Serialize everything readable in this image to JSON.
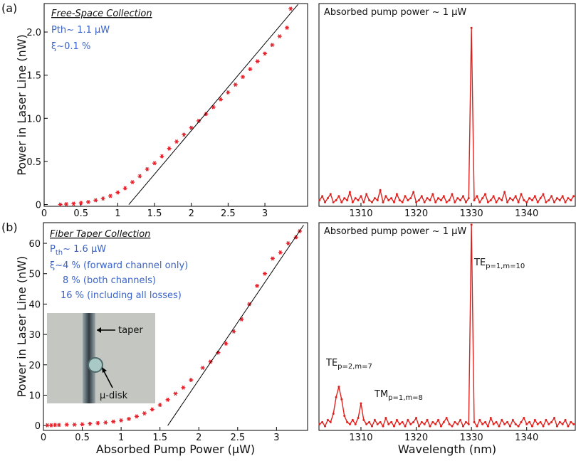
{
  "chart_data": [
    {
      "type": "scatter",
      "label": "(a)",
      "ylabel": "Power in Laser Line (nW)",
      "xlim": [
        0,
        3.58
      ],
      "ylim": [
        -0.02,
        2.33
      ],
      "xticks": [
        0,
        0.5,
        1,
        1.5,
        2,
        2.5,
        3
      ],
      "yticks": [
        0,
        0.5,
        {
          "value": 1,
          "label": "1.0"
        },
        1.5,
        {
          "value": 2,
          "label": "2.0"
        }
      ],
      "series": [
        {
          "marker": "star",
          "color": "#e8202a",
          "x": [
            0.22,
            0.3,
            0.4,
            0.5,
            0.6,
            0.7,
            0.8,
            0.9,
            1.0,
            1.1,
            1.2,
            1.3,
            1.4,
            1.5,
            1.6,
            1.7,
            1.8,
            1.9,
            2.0,
            2.1,
            2.2,
            2.3,
            2.4,
            2.5,
            2.6,
            2.7,
            2.8,
            2.9,
            3.0,
            3.1,
            3.2,
            3.3,
            3.35
          ],
          "values": [
            0.0,
            0.005,
            0.01,
            0.02,
            0.03,
            0.05,
            0.07,
            0.1,
            0.14,
            0.19,
            0.26,
            0.33,
            0.41,
            0.48,
            0.56,
            0.65,
            0.73,
            0.81,
            0.89,
            0.97,
            1.05,
            1.13,
            1.22,
            1.3,
            1.39,
            1.48,
            1.57,
            1.66,
            1.75,
            1.85,
            1.95,
            2.05,
            2.27
          ]
        },
        {
          "marker": "none",
          "color": "#000000",
          "x": [
            1.15,
            3.45
          ],
          "values": [
            0,
            2.32
          ]
        }
      ],
      "annotations": [
        {
          "text": "Free-Space Collection"
        },
        {
          "text": "Pth~ 1.1 µW"
        },
        {
          "text": "ξ~0.1 %"
        }
      ]
    },
    {
      "type": "line",
      "title": "Absorbed pump power ~ 1 µW",
      "xlim": [
        1302.4,
        1348.8
      ],
      "ylim": [
        0,
        1
      ],
      "xticks": [
        1310,
        1320,
        1330,
        1340
      ],
      "x": [
        1302.5,
        1303,
        1303.5,
        1304,
        1304.5,
        1305,
        1305.5,
        1306,
        1306.5,
        1307,
        1307.5,
        1308,
        1308.5,
        1309,
        1309.5,
        1310,
        1310.5,
        1311,
        1311.5,
        1312,
        1312.5,
        1313,
        1313.5,
        1314,
        1314.5,
        1315,
        1315.5,
        1316,
        1316.5,
        1317,
        1317.5,
        1318,
        1318.5,
        1319,
        1319.5,
        1320,
        1320.5,
        1321,
        1321.5,
        1322,
        1322.5,
        1323,
        1323.5,
        1324,
        1324.5,
        1325,
        1325.5,
        1326,
        1326.5,
        1327,
        1327.5,
        1328,
        1328.5,
        1329,
        1329.5,
        1330,
        1330.5,
        1331,
        1331.5,
        1332,
        1332.5,
        1333,
        1333.5,
        1334,
        1334.5,
        1335,
        1335.5,
        1336,
        1336.5,
        1337,
        1337.5,
        1338,
        1338.5,
        1339,
        1339.5,
        1340,
        1340.5,
        1341,
        1341.5,
        1342,
        1342.5,
        1343,
        1343.5,
        1344,
        1344.5,
        1345,
        1345.5,
        1346,
        1346.5,
        1347,
        1347.5,
        1348,
        1348.5
      ],
      "series": [
        {
          "color": "#e0201c",
          "values": [
            0.03,
            0.05,
            0.02,
            0.04,
            0.06,
            0.02,
            0.03,
            0.05,
            0.02,
            0.04,
            0.03,
            0.07,
            0.02,
            0.04,
            0.03,
            0.05,
            0.02,
            0.06,
            0.03,
            0.02,
            0.04,
            0.03,
            0.08,
            0.02,
            0.05,
            0.03,
            0.04,
            0.02,
            0.06,
            0.03,
            0.02,
            0.05,
            0.03,
            0.04,
            0.07,
            0.02,
            0.03,
            0.05,
            0.02,
            0.04,
            0.03,
            0.06,
            0.02,
            0.04,
            0.03,
            0.05,
            0.02,
            0.03,
            0.06,
            0.02,
            0.04,
            0.03,
            0.05,
            0.02,
            0.04,
            0.88,
            0.03,
            0.05,
            0.02,
            0.04,
            0.06,
            0.02,
            0.03,
            0.05,
            0.02,
            0.04,
            0.03,
            0.07,
            0.02,
            0.04,
            0.03,
            0.05,
            0.02,
            0.06,
            0.03,
            0.02,
            0.04,
            0.03,
            0.05,
            0.02,
            0.04,
            0.06,
            0.02,
            0.03,
            0.05,
            0.02,
            0.04,
            0.03,
            0.05,
            0.02,
            0.04,
            0.03,
            0.05
          ]
        }
      ],
      "annotations": []
    },
    {
      "type": "scatter",
      "label": "(b)",
      "ylabel": "Power in Laser Line (nW)",
      "xlabel": "Absorbed Pump Power (µW)",
      "xlim": [
        0,
        3.4
      ],
      "ylim": [
        -1.6,
        66.8
      ],
      "xticks": [
        0,
        0.5,
        1,
        1.5,
        2,
        2.5,
        3
      ],
      "yticks": [
        0,
        10,
        20,
        30,
        40,
        50,
        60
      ],
      "series": [
        {
          "marker": "star",
          "color": "#e8202a",
          "x": [
            0.05,
            0.1,
            0.15,
            0.2,
            0.3,
            0.4,
            0.5,
            0.6,
            0.7,
            0.8,
            0.9,
            1.0,
            1.1,
            1.2,
            1.3,
            1.4,
            1.5,
            1.6,
            1.7,
            1.8,
            1.9,
            2.05,
            2.15,
            2.25,
            2.35,
            2.45,
            2.55,
            2.65,
            2.75,
            2.85,
            2.95,
            3.05,
            3.15,
            3.25,
            3.3
          ],
          "values": [
            0.1,
            0.1,
            0.2,
            0.2,
            0.3,
            0.3,
            0.4,
            0.6,
            0.8,
            1.0,
            1.3,
            1.7,
            2.2,
            3.0,
            4.0,
            5.3,
            6.8,
            8.5,
            10.5,
            12.5,
            15,
            19,
            21,
            24,
            27,
            31,
            35,
            40,
            46,
            50,
            55,
            57,
            60,
            62,
            64
          ]
        },
        {
          "marker": "none",
          "color": "#000000",
          "x": [
            1.6,
            3.35
          ],
          "values": [
            0,
            66
          ]
        }
      ],
      "annotations": [
        {
          "text": "Fiber Taper Collection"
        },
        {
          "text": "P",
          "sub": "th",
          "rest": "~ 1.6 µW"
        },
        {
          "text": "ξ~4 %  (forward channel only)"
        },
        {
          "text": "8 %  (both channels)"
        },
        {
          "text": "16 % (including all losses)"
        },
        {
          "text": "taper"
        },
        {
          "text": "µ-disk"
        }
      ]
    },
    {
      "type": "line",
      "title": "Absorbed pump power ~ 1 µW",
      "xlabel": "Wavelength (nm)",
      "xlim": [
        1302.4,
        1348.8
      ],
      "ylim": [
        0,
        1
      ],
      "xticks": [
        1310,
        1320,
        1330,
        1340
      ],
      "x": [
        1302.5,
        1303,
        1303.5,
        1304,
        1304.5,
        1305,
        1305.5,
        1306,
        1306.5,
        1307,
        1307.5,
        1308,
        1308.5,
        1309,
        1309.5,
        1310,
        1310.5,
        1311,
        1311.5,
        1312,
        1312.5,
        1313,
        1313.5,
        1314,
        1314.5,
        1315,
        1315.5,
        1316,
        1316.5,
        1317,
        1317.5,
        1318,
        1318.5,
        1319,
        1319.5,
        1320,
        1320.5,
        1321,
        1321.5,
        1322,
        1322.5,
        1323,
        1323.5,
        1324,
        1324.5,
        1325,
        1325.5,
        1326,
        1326.5,
        1327,
        1327.5,
        1328,
        1328.5,
        1329,
        1329.5,
        1330,
        1330.5,
        1331,
        1331.5,
        1332,
        1332.5,
        1333,
        1333.5,
        1334,
        1334.5,
        1335,
        1335.5,
        1336,
        1336.5,
        1337,
        1337.5,
        1338,
        1338.5,
        1339,
        1339.5,
        1340,
        1340.5,
        1341,
        1341.5,
        1342,
        1342.5,
        1343,
        1343.5,
        1344,
        1344.5,
        1345,
        1345.5,
        1346,
        1346.5,
        1347,
        1347.5,
        1348,
        1348.5
      ],
      "series": [
        {
          "color": "#e0201c",
          "values": [
            0.03,
            0.04,
            0.02,
            0.05,
            0.04,
            0.08,
            0.16,
            0.21,
            0.15,
            0.07,
            0.04,
            0.03,
            0.05,
            0.03,
            0.06,
            0.13,
            0.05,
            0.03,
            0.04,
            0.02,
            0.05,
            0.03,
            0.04,
            0.02,
            0.06,
            0.03,
            0.04,
            0.02,
            0.05,
            0.03,
            0.04,
            0.02,
            0.05,
            0.03,
            0.04,
            0.06,
            0.02,
            0.04,
            0.03,
            0.05,
            0.02,
            0.04,
            0.03,
            0.05,
            0.02,
            0.04,
            0.06,
            0.03,
            0.02,
            0.04,
            0.03,
            0.05,
            0.02,
            0.04,
            0.03,
            0.99,
            0.04,
            0.02,
            0.05,
            0.03,
            0.04,
            0.02,
            0.06,
            0.03,
            0.04,
            0.02,
            0.05,
            0.03,
            0.04,
            0.02,
            0.05,
            0.03,
            0.02,
            0.04,
            0.06,
            0.03,
            0.04,
            0.02,
            0.05,
            0.03,
            0.04,
            0.02,
            0.05,
            0.03,
            0.04,
            0.06,
            0.02,
            0.04,
            0.03,
            0.05,
            0.02,
            0.04,
            0.03
          ]
        }
      ],
      "annotations": [
        {
          "text": "TE",
          "sub": "p=1,m=10"
        },
        {
          "text": "TE",
          "sub": "p=2,m=7"
        },
        {
          "text": "TM",
          "sub": "p=1,m=8"
        }
      ]
    }
  ]
}
